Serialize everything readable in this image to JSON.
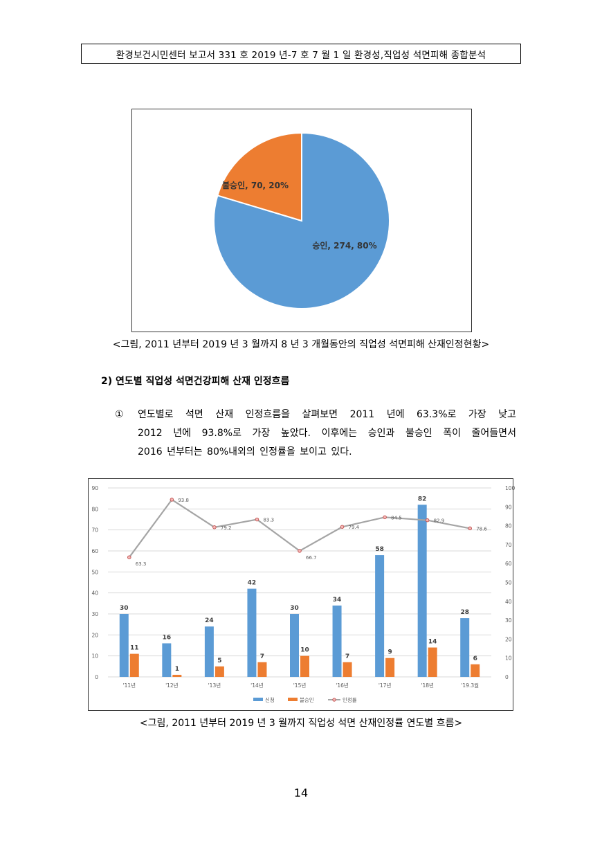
{
  "header": {
    "text": "환경보건시민센터 보고서 331 호 2019 년-7 호 7 월 1 일 환경성,직업성 석면피해 종합분석"
  },
  "figure1": {
    "caption": "<그림, 2011 년부터 2019 년 3 월까지 8 년 3 개월동안의 직업성 석면피해 산재인정현황>",
    "labels": [
      "승인, 274, 80%",
      "불승인, 70, 20%"
    ],
    "colors": {
      "approved": "#5b9bd5",
      "rejected": "#ed7d31"
    }
  },
  "section": {
    "title": "2)  연도별 직업성 석면건강피해 산재 인정흐름"
  },
  "paragraph": {
    "marker": "①",
    "line1": [
      "연도별로",
      "석면",
      "산재",
      "인정흐름을",
      "살펴보면",
      "2011",
      "년에",
      "63.3%로",
      "가장",
      "낮고"
    ],
    "line2": [
      "2012",
      "년에",
      "93.8%로",
      "가장",
      "높았다.",
      "이후에는",
      "승인과",
      "불승인",
      "폭이",
      "줄어들면서"
    ],
    "line3": "2016 년부터는 80%내외의 인정률을 보이고 있다."
  },
  "figure2": {
    "caption": "<그림, 2011 년부터 2019 년 3 월까지 직업성 석면 산재인정률 연도별 흐름>"
  },
  "chart_data": [
    {
      "type": "pie",
      "title": "",
      "slices": [
        {
          "label": "승인",
          "value": 274,
          "percent": 80,
          "color": "#5b9bd5"
        },
        {
          "label": "불승인",
          "value": 70,
          "percent": 20,
          "color": "#ed7d31"
        }
      ]
    },
    {
      "type": "bar",
      "title": "",
      "categories": [
        "'11년",
        "'12년",
        "'13년",
        "'14년",
        "'15년",
        "'16년",
        "'17년",
        "'18년",
        "'19.3월"
      ],
      "series": [
        {
          "name": "신청",
          "kind": "bar",
          "axis": "left",
          "color": "#5b9bd5",
          "values": [
            30,
            16,
            24,
            42,
            30,
            34,
            58,
            82,
            28
          ]
        },
        {
          "name": "불승인",
          "kind": "bar",
          "axis": "left",
          "color": "#ed7d31",
          "values": [
            11,
            1,
            5,
            7,
            10,
            7,
            9,
            14,
            6
          ]
        },
        {
          "name": "인정률",
          "kind": "line",
          "axis": "right",
          "color": "#a5a5a5",
          "marker_color": "#c0504d",
          "values": [
            63.3,
            93.8,
            79.2,
            83.3,
            66.7,
            79.4,
            84.5,
            82.9,
            78.6
          ]
        }
      ],
      "y_left": {
        "min": 0,
        "max": 90,
        "ticks": [
          0,
          10,
          20,
          30,
          40,
          50,
          60,
          70,
          80,
          90
        ]
      },
      "y_right": {
        "min": 0,
        "max": 100,
        "ticks": [
          0,
          10,
          20,
          30,
          40,
          50,
          60,
          70,
          80,
          90,
          100
        ]
      },
      "grid": true,
      "legend": "bottom"
    }
  ],
  "page_number": "14"
}
